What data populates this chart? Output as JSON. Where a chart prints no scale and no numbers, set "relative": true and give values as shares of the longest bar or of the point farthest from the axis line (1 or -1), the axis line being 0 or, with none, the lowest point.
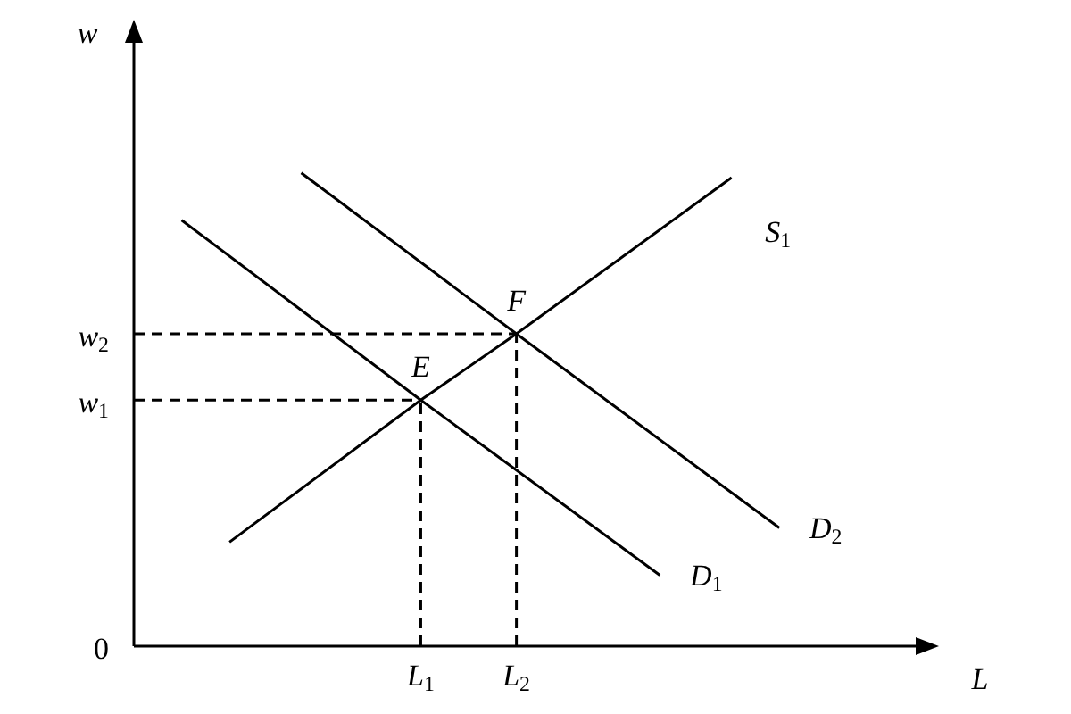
{
  "chart_data": {
    "type": "line",
    "relative": true,
    "xlabel": "L",
    "ylabel": "w",
    "categories": [
      null,
      null,
      null,
      null,
      null,
      null,
      null,
      null,
      null,
      null,
      null,
      null,
      "L$_{1}$",
      null,
      null,
      null,
      "L$_{2}$",
      null,
      null,
      null,
      null,
      null,
      null,
      null,
      null,
      null,
      null,
      null,
      null,
      null,
      null,
      null,
      null,
      null
    ],
    "series": [
      {
        "name": "S$_{1}$",
        "color": "#000000",
        "values": [
          null,
          null,
          null,
          null,
          0.22,
          null,
          null,
          null,
          null,
          null,
          null,
          null,
          0.52,
          null,
          null,
          null,
          0.66,
          null,
          null,
          null,
          null,
          null,
          null,
          null,
          null,
          0.99,
          null,
          null,
          null,
          null,
          null,
          null,
          null,
          null
        ]
      },
      {
        "name": "D$_{1}$",
        "color": "#000000",
        "values": [
          null,
          null,
          0.9,
          null,
          null,
          null,
          null,
          null,
          null,
          null,
          null,
          null,
          0.52,
          null,
          null,
          null,
          null,
          null,
          null,
          null,
          null,
          null,
          0.15,
          null,
          null,
          null,
          null,
          null,
          null,
          null,
          null,
          null,
          null,
          null
        ]
      },
      {
        "name": "D$_{2}$",
        "color": "#000000",
        "values": [
          null,
          null,
          null,
          null,
          null,
          null,
          null,
          1.0,
          null,
          null,
          null,
          null,
          null,
          null,
          null,
          null,
          0.66,
          null,
          null,
          null,
          null,
          null,
          null,
          null,
          null,
          null,
          null,
          0.25,
          null,
          null,
          null,
          null,
          null,
          null
        ]
      }
    ],
    "ref_lines": [
      {
        "axis": "y",
        "value": 0.52,
        "label": "w$_{1}$",
        "color": "#000000",
        "line_style": "dashed"
      },
      {
        "axis": "y",
        "value": 0.66,
        "label": "w$_{2}$",
        "color": "#000000",
        "line_style": "dashed"
      },
      {
        "axis": "x",
        "value": "L$_{1}$",
        "color": "#000000",
        "line_style": "dashed"
      },
      {
        "axis": "x",
        "value": "L$_{2}$",
        "color": "#000000",
        "line_style": "dashed"
      }
    ],
    "annotations": [
      "0",
      {
        "text": "E",
        "x": "L$_{1}$",
        "y": 0.52
      },
      {
        "text": "F",
        "x": "L$_{2}$",
        "y": 0.66
      }
    ]
  }
}
